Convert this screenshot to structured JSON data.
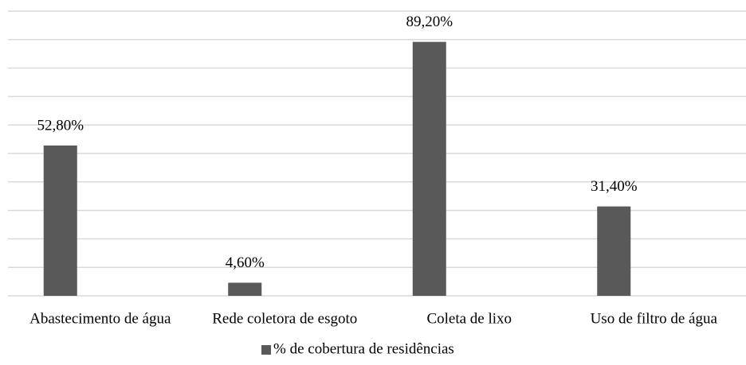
{
  "chart_data": {
    "type": "bar",
    "categories": [
      "Abastecimento de água",
      "Rede coletora de esgoto",
      "Coleta de lixo",
      "Uso de filtro de água"
    ],
    "series": [
      {
        "name": "% de cobertura de residências",
        "color": "#595959",
        "values": [
          52.8,
          4.6,
          89.2,
          31.4
        ],
        "value_labels": [
          "52,80%",
          "4,60%",
          "89,20%",
          "31,40%"
        ]
      }
    ],
    "ylim": [
      0,
      100
    ],
    "yticks": [
      0,
      10,
      20,
      30,
      40,
      50,
      60,
      70,
      80,
      90,
      100
    ],
    "grid": true,
    "legend": "bottom"
  }
}
